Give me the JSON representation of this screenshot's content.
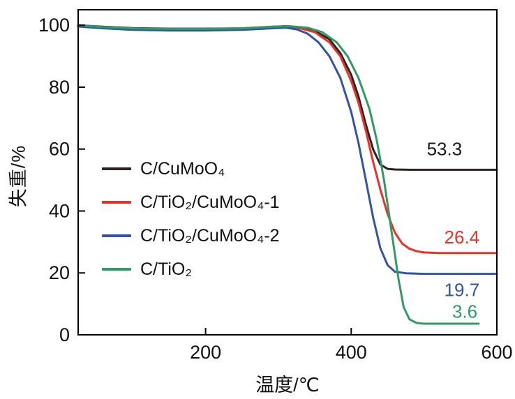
{
  "figure": {
    "background": "#ffffff",
    "y_axis_title": "失重/%",
    "x_axis_title": "温度/℃"
  },
  "chart_data": {
    "type": "line",
    "title": "",
    "xlabel": "温度/℃",
    "ylabel": "失重/%",
    "xlim": [
      25,
      600
    ],
    "ylim": [
      0,
      105
    ],
    "x_ticks": [
      200,
      400,
      600
    ],
    "y_ticks": [
      0,
      20,
      40,
      60,
      80,
      100
    ],
    "grid": false,
    "legend_position": "center-left",
    "axis_color": "#000000",
    "series": [
      {
        "name": "C/CuMoO₄",
        "color": "#2b211f",
        "final_value": 53.3,
        "points": [
          [
            25,
            100
          ],
          [
            60,
            99.5
          ],
          [
            100,
            99.1
          ],
          [
            150,
            98.9
          ],
          [
            200,
            98.9
          ],
          [
            250,
            99.0
          ],
          [
            290,
            99.5
          ],
          [
            310,
            99.7
          ],
          [
            330,
            99.3
          ],
          [
            350,
            98.2
          ],
          [
            370,
            95.5
          ],
          [
            385,
            91
          ],
          [
            400,
            84
          ],
          [
            410,
            77
          ],
          [
            420,
            68
          ],
          [
            430,
            60
          ],
          [
            440,
            55
          ],
          [
            450,
            53.6
          ],
          [
            460,
            53.4
          ],
          [
            480,
            53.3
          ],
          [
            520,
            53.3
          ],
          [
            600,
            53.3
          ]
        ]
      },
      {
        "name": "C/TiO₂/CuMoO₄-1",
        "color": "#e63329",
        "final_value": 26.4,
        "points": [
          [
            25,
            99.8
          ],
          [
            60,
            99.2
          ],
          [
            100,
            98.8
          ],
          [
            150,
            98.6
          ],
          [
            200,
            98.6
          ],
          [
            250,
            98.8
          ],
          [
            290,
            99.3
          ],
          [
            310,
            99.5
          ],
          [
            330,
            99.0
          ],
          [
            350,
            97.8
          ],
          [
            370,
            94.5
          ],
          [
            385,
            90
          ],
          [
            400,
            82
          ],
          [
            410,
            75
          ],
          [
            420,
            66
          ],
          [
            430,
            56
          ],
          [
            440,
            47
          ],
          [
            450,
            39
          ],
          [
            460,
            33
          ],
          [
            470,
            29.5
          ],
          [
            480,
            27.8
          ],
          [
            490,
            27.0
          ],
          [
            500,
            26.6
          ],
          [
            520,
            26.4
          ],
          [
            600,
            26.4
          ]
        ]
      },
      {
        "name": "C/TiO₂/CuMoO₄-2",
        "color": "#3353a4",
        "final_value": 19.7,
        "points": [
          [
            25,
            99.6
          ],
          [
            60,
            99.0
          ],
          [
            100,
            98.5
          ],
          [
            150,
            98.3
          ],
          [
            200,
            98.3
          ],
          [
            250,
            98.5
          ],
          [
            290,
            99.0
          ],
          [
            310,
            99.2
          ],
          [
            325,
            98.7
          ],
          [
            340,
            97.3
          ],
          [
            355,
            94.5
          ],
          [
            370,
            90
          ],
          [
            385,
            83
          ],
          [
            400,
            72
          ],
          [
            410,
            62
          ],
          [
            420,
            50
          ],
          [
            430,
            38
          ],
          [
            440,
            28
          ],
          [
            450,
            22.5
          ],
          [
            460,
            20.4
          ],
          [
            475,
            19.9
          ],
          [
            500,
            19.7
          ],
          [
            600,
            19.7
          ]
        ]
      },
      {
        "name": "C/TiO₂",
        "color": "#2f9b63",
        "final_value": 3.6,
        "points": [
          [
            25,
            100
          ],
          [
            60,
            99.4
          ],
          [
            100,
            99.0
          ],
          [
            150,
            98.8
          ],
          [
            200,
            98.8
          ],
          [
            250,
            99.0
          ],
          [
            290,
            99.5
          ],
          [
            315,
            99.7
          ],
          [
            340,
            99.2
          ],
          [
            360,
            97.8
          ],
          [
            380,
            94.5
          ],
          [
            395,
            90
          ],
          [
            410,
            83
          ],
          [
            425,
            73
          ],
          [
            435,
            63
          ],
          [
            445,
            50
          ],
          [
            455,
            34
          ],
          [
            465,
            18
          ],
          [
            472,
            9
          ],
          [
            480,
            5
          ],
          [
            490,
            3.8
          ],
          [
            500,
            3.6
          ],
          [
            540,
            3.6
          ],
          [
            575,
            3.6
          ]
        ]
      }
    ],
    "annotations": [
      {
        "text": "53.3",
        "x": 528,
        "y": 60,
        "color": "#1a1a1a"
      },
      {
        "text": "26.4",
        "x": 552,
        "y": 31.5,
        "color": "#e63329"
      },
      {
        "text": "19.7",
        "x": 552,
        "y": 14.5,
        "color": "#3353a4"
      },
      {
        "text": "3.6",
        "x": 556,
        "y": 7.6,
        "color": "#2f9b63"
      }
    ]
  }
}
